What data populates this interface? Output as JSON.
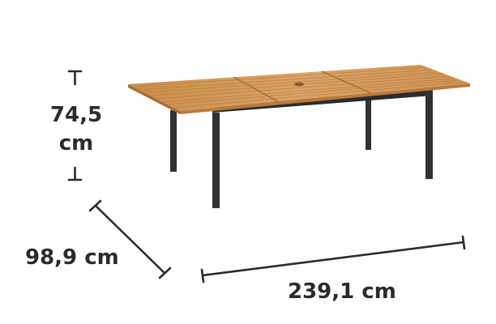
{
  "dimensions": {
    "height": {
      "value": "74,5",
      "unit": "cm"
    },
    "depth": {
      "label": "98,9 cm"
    },
    "width": {
      "label": "239,1 cm"
    }
  },
  "product": {
    "image": "extendable-garden-table-icon",
    "colors": {
      "wood_top": "#d39b57",
      "wood_edge": "#b97a3c",
      "frame": "#2f3233",
      "dimension_line": "#2b2b2b"
    }
  }
}
